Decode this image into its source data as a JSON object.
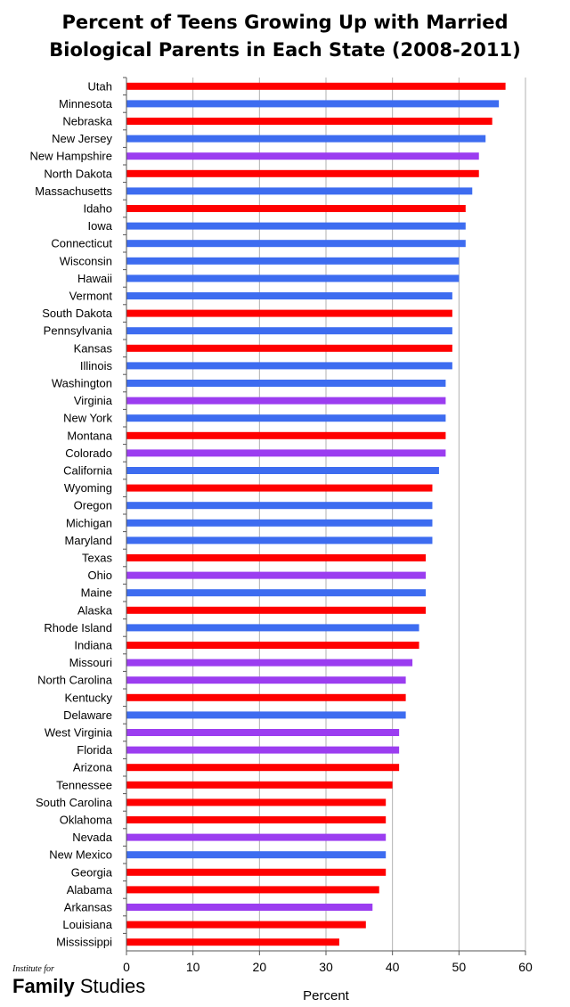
{
  "title_line1": "Percent of Teens Growing Up with Married",
  "title_line2": "Biological Parents in Each State (2008-2011)",
  "brand": {
    "prefix": "Institute for",
    "name_bold": "Family",
    "name_light": " Studies"
  },
  "colors": {
    "red": "#ff0000",
    "blue": "#3d6cf0",
    "purple": "#9b3df0",
    "grid": "#b0b0b0"
  },
  "chart_data": {
    "type": "bar",
    "orientation": "horizontal",
    "title": "Percent of Teens Growing Up with Married Biological Parents in Each State (2008-2011)",
    "xlabel": "Percent",
    "ylabel": "",
    "xlim": [
      0,
      60
    ],
    "xticks": [
      "0",
      "10",
      "20",
      "30",
      "40",
      "50",
      "60"
    ],
    "grid": true,
    "legend": "none",
    "bars": [
      {
        "state": "Utah",
        "value": 57,
        "color": "red"
      },
      {
        "state": "Minnesota",
        "value": 56,
        "color": "blue"
      },
      {
        "state": "Nebraska",
        "value": 55,
        "color": "red"
      },
      {
        "state": "New Jersey",
        "value": 54,
        "color": "blue"
      },
      {
        "state": "New Hampshire",
        "value": 53,
        "color": "purple"
      },
      {
        "state": "North Dakota",
        "value": 53,
        "color": "red"
      },
      {
        "state": "Massachusetts",
        "value": 52,
        "color": "blue"
      },
      {
        "state": "Idaho",
        "value": 51,
        "color": "red"
      },
      {
        "state": "Iowa",
        "value": 51,
        "color": "blue"
      },
      {
        "state": "Connecticut",
        "value": 51,
        "color": "blue"
      },
      {
        "state": "Wisconsin",
        "value": 50,
        "color": "blue"
      },
      {
        "state": "Hawaii",
        "value": 50,
        "color": "blue"
      },
      {
        "state": "Vermont",
        "value": 49,
        "color": "blue"
      },
      {
        "state": "South Dakota",
        "value": 49,
        "color": "red"
      },
      {
        "state": "Pennsylvania",
        "value": 49,
        "color": "blue"
      },
      {
        "state": "Kansas",
        "value": 49,
        "color": "red"
      },
      {
        "state": "Illinois",
        "value": 49,
        "color": "blue"
      },
      {
        "state": "Washington",
        "value": 48,
        "color": "blue"
      },
      {
        "state": "Virginia",
        "value": 48,
        "color": "purple"
      },
      {
        "state": "New York",
        "value": 48,
        "color": "blue"
      },
      {
        "state": "Montana",
        "value": 48,
        "color": "red"
      },
      {
        "state": "Colorado",
        "value": 48,
        "color": "purple"
      },
      {
        "state": "California",
        "value": 47,
        "color": "blue"
      },
      {
        "state": "Wyoming",
        "value": 46,
        "color": "red"
      },
      {
        "state": "Oregon",
        "value": 46,
        "color": "blue"
      },
      {
        "state": "Michigan",
        "value": 46,
        "color": "blue"
      },
      {
        "state": "Maryland",
        "value": 46,
        "color": "blue"
      },
      {
        "state": "Texas",
        "value": 45,
        "color": "red"
      },
      {
        "state": "Ohio",
        "value": 45,
        "color": "purple"
      },
      {
        "state": "Maine",
        "value": 45,
        "color": "blue"
      },
      {
        "state": "Alaska",
        "value": 45,
        "color": "red"
      },
      {
        "state": "Rhode Island",
        "value": 44,
        "color": "blue"
      },
      {
        "state": "Indiana",
        "value": 44,
        "color": "red"
      },
      {
        "state": "Missouri",
        "value": 43,
        "color": "purple"
      },
      {
        "state": "North Carolina",
        "value": 42,
        "color": "purple"
      },
      {
        "state": "Kentucky",
        "value": 42,
        "color": "red"
      },
      {
        "state": "Delaware",
        "value": 42,
        "color": "blue"
      },
      {
        "state": "West Virginia",
        "value": 41,
        "color": "purple"
      },
      {
        "state": "Florida",
        "value": 41,
        "color": "purple"
      },
      {
        "state": "Arizona",
        "value": 41,
        "color": "red"
      },
      {
        "state": "Tennessee",
        "value": 40,
        "color": "red"
      },
      {
        "state": "South Carolina",
        "value": 39,
        "color": "red"
      },
      {
        "state": "Oklahoma",
        "value": 39,
        "color": "red"
      },
      {
        "state": "Nevada",
        "value": 39,
        "color": "purple"
      },
      {
        "state": "New Mexico",
        "value": 39,
        "color": "blue"
      },
      {
        "state": "Georgia",
        "value": 39,
        "color": "red"
      },
      {
        "state": "Alabama",
        "value": 38,
        "color": "red"
      },
      {
        "state": "Arkansas",
        "value": 37,
        "color": "purple"
      },
      {
        "state": "Louisiana",
        "value": 36,
        "color": "red"
      },
      {
        "state": "Mississippi",
        "value": 32,
        "color": "red"
      }
    ]
  }
}
